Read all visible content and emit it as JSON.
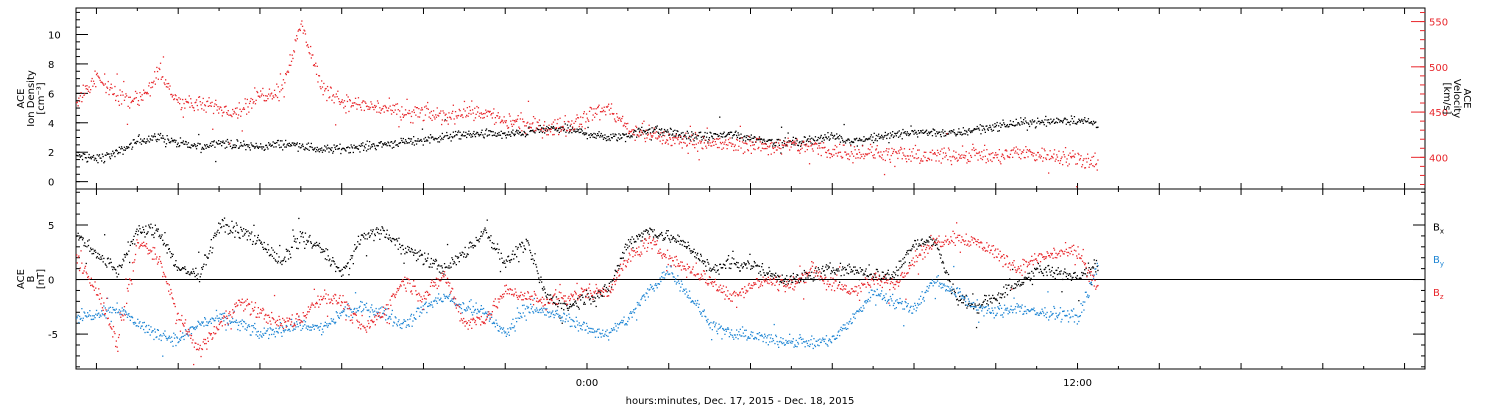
{
  "colors": {
    "black": "#000000",
    "red": "#e8262b",
    "blue": "#1f86d4",
    "axis": "#000000"
  },
  "footer": {
    "xlabel": "hours:minutes, Dec. 17, 2015 - Dec. 18, 2015"
  },
  "chart_data": [
    {
      "type": "scatter",
      "panel": "top",
      "ylabel_lines": [
        "ACE",
        "Ion Density",
        "[cm⁻³]"
      ],
      "y2label_lines": [
        "ACE",
        "Velocity",
        "[km/s]"
      ],
      "xlim": [
        -12.5,
        20.5
      ],
      "ylim": [
        -0.5,
        11.8
      ],
      "yticks": [
        0,
        2,
        4,
        6,
        8,
        10
      ],
      "y2lim": [
        365,
        565
      ],
      "y2ticks": [
        400,
        450,
        500,
        550
      ],
      "xticks": [
        {
          "value": 0,
          "label": "0:00"
        },
        {
          "value": 12,
          "label": "12:00"
        }
      ],
      "grid": false,
      "series": [
        {
          "color": "black",
          "axis": "left",
          "noise": 0.45,
          "x": [
            -12.5,
            -12,
            -11.5,
            -11,
            -10.5,
            -10,
            -9.5,
            -9,
            -8.5,
            -8,
            -7.5,
            -7,
            -6.5,
            -6,
            -5.5,
            -5,
            -4.5,
            -4,
            -3.5,
            -3,
            -2.5,
            -2,
            -1.5,
            -1,
            -0.5,
            0,
            0.5,
            1,
            1.5,
            2,
            2.5,
            3,
            3.5,
            4,
            4.5,
            5,
            5.5,
            6,
            6.5,
            7,
            7.5,
            8,
            8.5,
            9,
            9.5,
            10,
            10.5,
            11,
            11.5,
            12,
            12.5
          ],
          "y": [
            1.8,
            1.6,
            2.0,
            2.8,
            3.1,
            2.6,
            2.4,
            2.7,
            2.5,
            2.4,
            2.6,
            2.5,
            2.2,
            2.3,
            2.4,
            2.6,
            2.7,
            2.9,
            3.1,
            3.2,
            3.3,
            3.2,
            3.4,
            3.6,
            3.6,
            3.3,
            3.0,
            3.2,
            3.6,
            3.4,
            3.1,
            3.1,
            3.3,
            3.0,
            2.8,
            2.7,
            2.9,
            3.1,
            2.8,
            3.0,
            3.2,
            3.4,
            3.4,
            3.3,
            3.6,
            3.8,
            4.0,
            4.1,
            4.2,
            4.2,
            4.0
          ]
        },
        {
          "color": "red",
          "axis": "right",
          "noise": 14,
          "x": [
            -12.5,
            -12,
            -11.5,
            -11,
            -10.5,
            -10,
            -9.5,
            -9,
            -8.5,
            -8,
            -7.5,
            -7,
            -6.5,
            -6,
            -5.5,
            -5,
            -4.5,
            -4,
            -3.5,
            -3,
            -2.5,
            -2,
            -1.5,
            -1,
            -0.5,
            0,
            0.5,
            1,
            1.5,
            2,
            2.5,
            3,
            3.5,
            4,
            4.5,
            5,
            5.5,
            6,
            6.5,
            7,
            7.5,
            8,
            8.5,
            9,
            9.5,
            10,
            10.5,
            11,
            11.5,
            12,
            12.5
          ],
          "y": [
            460,
            488,
            470,
            462,
            493,
            462,
            458,
            455,
            452,
            470,
            475,
            548,
            478,
            462,
            458,
            455,
            448,
            450,
            445,
            452,
            450,
            440,
            438,
            432,
            436,
            448,
            455,
            432,
            425,
            420,
            418,
            416,
            414,
            415,
            412,
            414,
            412,
            408,
            406,
            405,
            404,
            402,
            402,
            404,
            405,
            400,
            406,
            404,
            402,
            400,
            396
          ]
        }
      ]
    },
    {
      "type": "scatter",
      "panel": "bottom",
      "ylabel_lines": [
        "ACE",
        "B",
        "[nT]"
      ],
      "xlim": [
        -12.5,
        20.5
      ],
      "ylim": [
        -8.2,
        8.3
      ],
      "yticks": [
        -5,
        0,
        5
      ],
      "xticks": [
        {
          "value": 0,
          "label": "0:00"
        },
        {
          "value": 12,
          "label": "12:00"
        }
      ],
      "zero_line": true,
      "grid": false,
      "series": [
        {
          "name": "Bx",
          "label_main": "B",
          "label_sub": "x",
          "color": "black",
          "noise": 0.9,
          "x": [
            -12.5,
            -12,
            -11.5,
            -11,
            -10.5,
            -10,
            -9.5,
            -9,
            -8.5,
            -8,
            -7.5,
            -7,
            -6.5,
            -6,
            -5.5,
            -5,
            -4.5,
            -4,
            -3.5,
            -3,
            -2.5,
            -2,
            -1.5,
            -1,
            -0.5,
            0,
            0.5,
            1,
            1.5,
            2,
            2.5,
            3,
            3.5,
            4,
            4.5,
            5,
            5.5,
            6,
            6.5,
            7,
            7.5,
            8,
            8.5,
            9,
            9.5,
            10,
            10.5,
            11,
            11.5,
            12,
            12.5
          ],
          "y": [
            4.0,
            2.5,
            0.8,
            4.5,
            4.5,
            1.0,
            0.5,
            5.0,
            4.5,
            3.5,
            1.5,
            4.0,
            2.8,
            0.5,
            4.0,
            4.5,
            3.0,
            2.0,
            1.0,
            2.5,
            4.5,
            1.5,
            3.5,
            -1.5,
            -2.5,
            -1.5,
            -1.0,
            3.5,
            4.5,
            4.0,
            3.0,
            1.0,
            1.5,
            1.5,
            0.5,
            0.0,
            0.5,
            1.0,
            1.0,
            0.5,
            0.5,
            3.5,
            3.5,
            -1.5,
            -2.5,
            -1.5,
            -0.5,
            1.0,
            0.5,
            0.5,
            1.5
          ]
        },
        {
          "name": "By",
          "label_main": "B",
          "label_sub": "y",
          "color": "blue",
          "noise": 0.85,
          "x": [
            -12.5,
            -12,
            -11.5,
            -11,
            -10.5,
            -10,
            -9.5,
            -9,
            -8.5,
            -8,
            -7.5,
            -7,
            -6.5,
            -6,
            -5.5,
            -5,
            -4.5,
            -4,
            -3.5,
            -3,
            -2.5,
            -2,
            -1.5,
            -1,
            -0.5,
            0,
            0.5,
            1,
            1.5,
            2,
            2.5,
            3,
            3.5,
            4,
            4.5,
            5,
            5.5,
            6,
            6.5,
            7,
            7.5,
            8,
            8.5,
            9,
            9.5,
            10,
            10.5,
            11,
            11.5,
            12,
            12.5
          ],
          "y": [
            -3.5,
            -3.0,
            -2.5,
            -4.0,
            -5.0,
            -5.5,
            -4.0,
            -3.5,
            -4.0,
            -5.0,
            -4.5,
            -4.0,
            -4.5,
            -3.0,
            -2.5,
            -3.0,
            -4.0,
            -2.5,
            -1.5,
            -2.5,
            -3.0,
            -5.0,
            -2.5,
            -3.0,
            -3.5,
            -4.5,
            -5.0,
            -3.5,
            -1.0,
            1.0,
            -1.5,
            -4.0,
            -5.0,
            -5.0,
            -5.5,
            -5.5,
            -5.8,
            -5.5,
            -3.5,
            -1.0,
            -2.0,
            -2.5,
            0.0,
            -1.0,
            -2.5,
            -3.0,
            -2.5,
            -3.0,
            -3.0,
            -3.5,
            1.5
          ]
        },
        {
          "name": "Bz",
          "label_main": "B",
          "label_sub": "z",
          "color": "red",
          "noise": 1.0,
          "x": [
            -12.5,
            -12,
            -11.5,
            -11,
            -10.5,
            -10,
            -9.5,
            -9,
            -8.5,
            -8,
            -7.5,
            -7,
            -6.5,
            -6,
            -5.5,
            -5,
            -4.5,
            -4,
            -3.5,
            -3,
            -2.5,
            -2,
            -1.5,
            -1,
            -0.5,
            0,
            0.5,
            1,
            1.5,
            2,
            2.5,
            3,
            3.5,
            4,
            4.5,
            5,
            5.5,
            6,
            6.5,
            7,
            7.5,
            8,
            8.5,
            9,
            9.5,
            10,
            10.5,
            11,
            11.5,
            12,
            12.5
          ],
          "y": [
            2.0,
            -1.0,
            -6.0,
            3.5,
            2.0,
            -3.5,
            -6.5,
            -4.0,
            -2.0,
            -3.0,
            -4.0,
            -3.5,
            -1.5,
            -2.0,
            -4.5,
            -3.0,
            0.0,
            -1.5,
            0.5,
            -4.0,
            -3.5,
            -1.0,
            -1.5,
            -2.0,
            -1.5,
            -1.0,
            -1.0,
            2.0,
            3.5,
            2.0,
            1.0,
            0.0,
            -1.5,
            -0.5,
            0.0,
            -0.5,
            1.0,
            -0.5,
            -1.0,
            0.0,
            -0.5,
            2.0,
            3.5,
            4.0,
            3.5,
            2.5,
            1.0,
            2.0,
            2.5,
            2.5,
            -1.0
          ]
        }
      ]
    }
  ]
}
